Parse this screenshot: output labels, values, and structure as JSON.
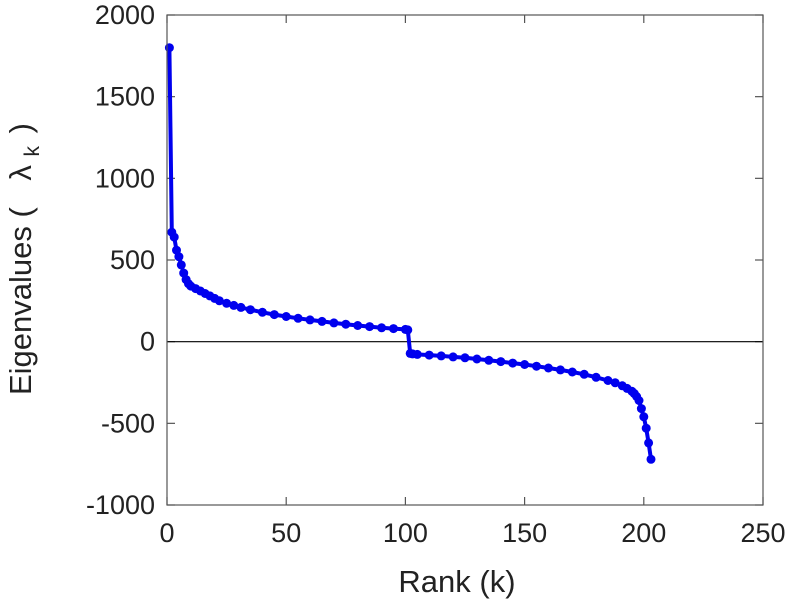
{
  "chart_data": {
    "type": "scatter",
    "xlabel": "Rank (k)",
    "ylabel": {
      "prefix": "Eigenvalues (",
      "symbol": "λ",
      "subscript": "k",
      "suffix": ")"
    },
    "xlim": [
      0,
      250
    ],
    "ylim": [
      -1000,
      2000
    ],
    "x_ticks": [
      "0",
      "50",
      "100",
      "150",
      "200",
      "250"
    ],
    "y_ticks": [
      "2000",
      "1500",
      "1000",
      "500",
      "0",
      "-500",
      "-1000"
    ],
    "zero_line": true,
    "grid": false,
    "series": [
      {
        "color": "#0000ee",
        "marker": "circle",
        "connected": true,
        "points": [
          [
            1,
            1800
          ],
          [
            2,
            670
          ],
          [
            3,
            640
          ],
          [
            4,
            560
          ],
          [
            5,
            520
          ],
          [
            6,
            470
          ],
          [
            7,
            420
          ],
          [
            8,
            380
          ],
          [
            9,
            355
          ],
          [
            10,
            340
          ],
          [
            12,
            325
          ],
          [
            14,
            310
          ],
          [
            16,
            295
          ],
          [
            18,
            280
          ],
          [
            20,
            265
          ],
          [
            22,
            250
          ],
          [
            25,
            235
          ],
          [
            28,
            222
          ],
          [
            31,
            210
          ],
          [
            35,
            196
          ],
          [
            40,
            180
          ],
          [
            45,
            166
          ],
          [
            50,
            154
          ],
          [
            55,
            143
          ],
          [
            60,
            133
          ],
          [
            65,
            124
          ],
          [
            70,
            115
          ],
          [
            75,
            107
          ],
          [
            80,
            99
          ],
          [
            85,
            92
          ],
          [
            90,
            85
          ],
          [
            95,
            80
          ],
          [
            100,
            75
          ],
          [
            101,
            72
          ],
          [
            102,
            -72
          ],
          [
            103,
            -75
          ],
          [
            105,
            -78
          ],
          [
            110,
            -82
          ],
          [
            115,
            -87
          ],
          [
            120,
            -93
          ],
          [
            125,
            -99
          ],
          [
            130,
            -106
          ],
          [
            135,
            -114
          ],
          [
            140,
            -122
          ],
          [
            145,
            -131
          ],
          [
            150,
            -140
          ],
          [
            155,
            -150
          ],
          [
            160,
            -161
          ],
          [
            165,
            -173
          ],
          [
            170,
            -186
          ],
          [
            175,
            -200
          ],
          [
            180,
            -218
          ],
          [
            185,
            -238
          ],
          [
            188,
            -252
          ],
          [
            191,
            -270
          ],
          [
            193,
            -286
          ],
          [
            195,
            -304
          ],
          [
            196,
            -318
          ],
          [
            197,
            -336
          ],
          [
            198,
            -360
          ],
          [
            199,
            -410
          ],
          [
            200,
            -460
          ],
          [
            201,
            -530
          ],
          [
            202,
            -620
          ],
          [
            203,
            -720
          ]
        ]
      }
    ]
  }
}
